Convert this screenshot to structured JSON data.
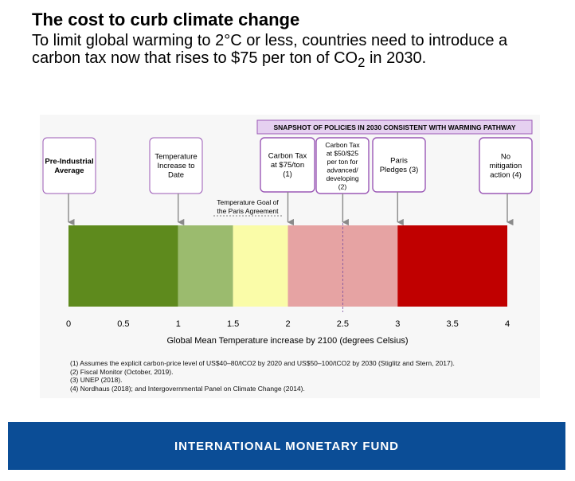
{
  "header": {
    "title": "The cost to curb climate change",
    "subtitle_parts": [
      "To limit global warming to 2°C or less, countries need to introduce a carbon tax now that rises to $75 per ton of CO",
      "2",
      " in 2030."
    ]
  },
  "chart_data": {
    "type": "bar",
    "xlabel": "Global Mean Temperature increase by 2100 (degrees Celsius)",
    "xlim": [
      0,
      4
    ],
    "ticks": [
      0,
      0.5,
      1,
      1.5,
      2,
      2.5,
      3,
      3.5,
      4
    ],
    "tick_labels": [
      "0",
      "0.5",
      "1",
      "1.5",
      "2",
      "2.5",
      "3",
      "3.5",
      "4"
    ],
    "segments": [
      {
        "from": 0,
        "to": 1,
        "color": "#5e8a1d"
      },
      {
        "from": 1,
        "to": 1.5,
        "color": "#9bbb6e"
      },
      {
        "from": 1.5,
        "to": 2,
        "color": "#fafca8"
      },
      {
        "from": 2,
        "to": 3,
        "color": "#e6a3a3"
      },
      {
        "from": 3,
        "to": 4,
        "color": "#c00000"
      }
    ],
    "snapshot_label": "SNAPSHOT OF POLICIES IN 2030 CONSISTENT WITH WARMING PATHWAY",
    "paris_goal": {
      "value": 2,
      "lines": [
        "Temperature Goal of",
        "the Paris Agreement"
      ]
    },
    "dashed_marker": 2.5,
    "annotations": [
      {
        "value": 0,
        "lines": [
          "Pre-Industrial",
          "Average"
        ],
        "bold": true,
        "style": "plain"
      },
      {
        "value": 1,
        "lines": [
          "Temperature",
          "Increase to",
          "Date"
        ],
        "bold": false,
        "style": "plain"
      },
      {
        "value": 2,
        "lines": [
          "Carbon Tax",
          "at $75/ton",
          "(1)"
        ],
        "bold": false,
        "style": "snapshot"
      },
      {
        "value": 2.5,
        "lines": [
          "Carbon Tax",
          "at $50/$25",
          "per ton for",
          "advanced/",
          "developing",
          "(2)"
        ],
        "bold": false,
        "style": "snapshot"
      },
      {
        "value": 3,
        "lines": [
          "Paris",
          "Pledges (3)"
        ],
        "bold": false,
        "style": "snapshot"
      },
      {
        "value": 4,
        "lines": [
          "No",
          "mitigation",
          "action (4)"
        ],
        "bold": false,
        "style": "snapshot"
      }
    ],
    "colors": {
      "frame": "#9b59b6",
      "snapshot_fill": "#e5d0f0",
      "arrow": "#8a8a8a",
      "dash": "#7b4fa0"
    }
  },
  "footnotes": [
    "(1) Assumes the explicit carbon-price level of US$40–80/tCO2 by 2020 and US$50–100/tCO2 by 2030 (Stiglitz and Stern, 2017).",
    "(2) Fiscal Monitor (October, 2019).",
    "(3) UNEP (2018).",
    "(4) Nordhaus (2018); and Intergovernmental Panel on Climate Change (2014)."
  ],
  "footer": {
    "label": "INTERNATIONAL MONETARY FUND"
  }
}
